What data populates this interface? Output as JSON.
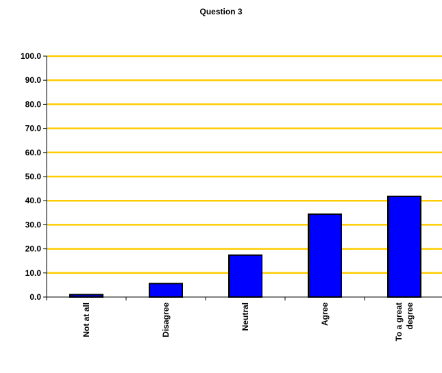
{
  "chart_data": {
    "type": "bar",
    "title": "Question 3",
    "xlabel": "",
    "ylabel": "",
    "categories": [
      "Not at all",
      "Disagree",
      "Neutral",
      "Agree",
      "To a great degree"
    ],
    "category_label_lines": [
      [
        "Not at all"
      ],
      [
        "Disagree"
      ],
      [
        "Neutral"
      ],
      [
        "Agree"
      ],
      [
        "To a great",
        "degree"
      ]
    ],
    "values": [
      1.0,
      5.6,
      17.4,
      34.4,
      41.8
    ],
    "ylim": [
      0,
      100
    ],
    "yticks": [
      "0.0",
      "10.0",
      "20.0",
      "30.0",
      "40.0",
      "50.0",
      "60.0",
      "70.0",
      "80.0",
      "90.0",
      "100.0"
    ],
    "grid": true,
    "legend": "none",
    "colors": {
      "bar_fill": "#0000FF",
      "bar_stroke": "#000000",
      "gridline": "#FFCC00",
      "axis": "#000000"
    }
  }
}
